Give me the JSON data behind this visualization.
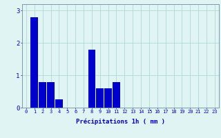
{
  "values": [
    0,
    2.8,
    0.8,
    0.8,
    0.25,
    0,
    0,
    0,
    1.8,
    0.6,
    0.6,
    0.8,
    0,
    0,
    0,
    0,
    0,
    0,
    0,
    0,
    0,
    0,
    0,
    0
  ],
  "bar_color": "#0000cc",
  "background_color": "#e0f4f4",
  "grid_color": "#b0d8d8",
  "xlabel": "Précipitations 1h ( mm )",
  "xlabel_color": "#0000bb",
  "tick_color": "#0000bb",
  "axis_color": "#7799aa",
  "ylim": [
    0,
    3.2
  ],
  "yticks": [
    0,
    1,
    2,
    3
  ],
  "num_bars": 24,
  "tick_fontsize": 5.0,
  "ylabel_fontsize": 6.5
}
